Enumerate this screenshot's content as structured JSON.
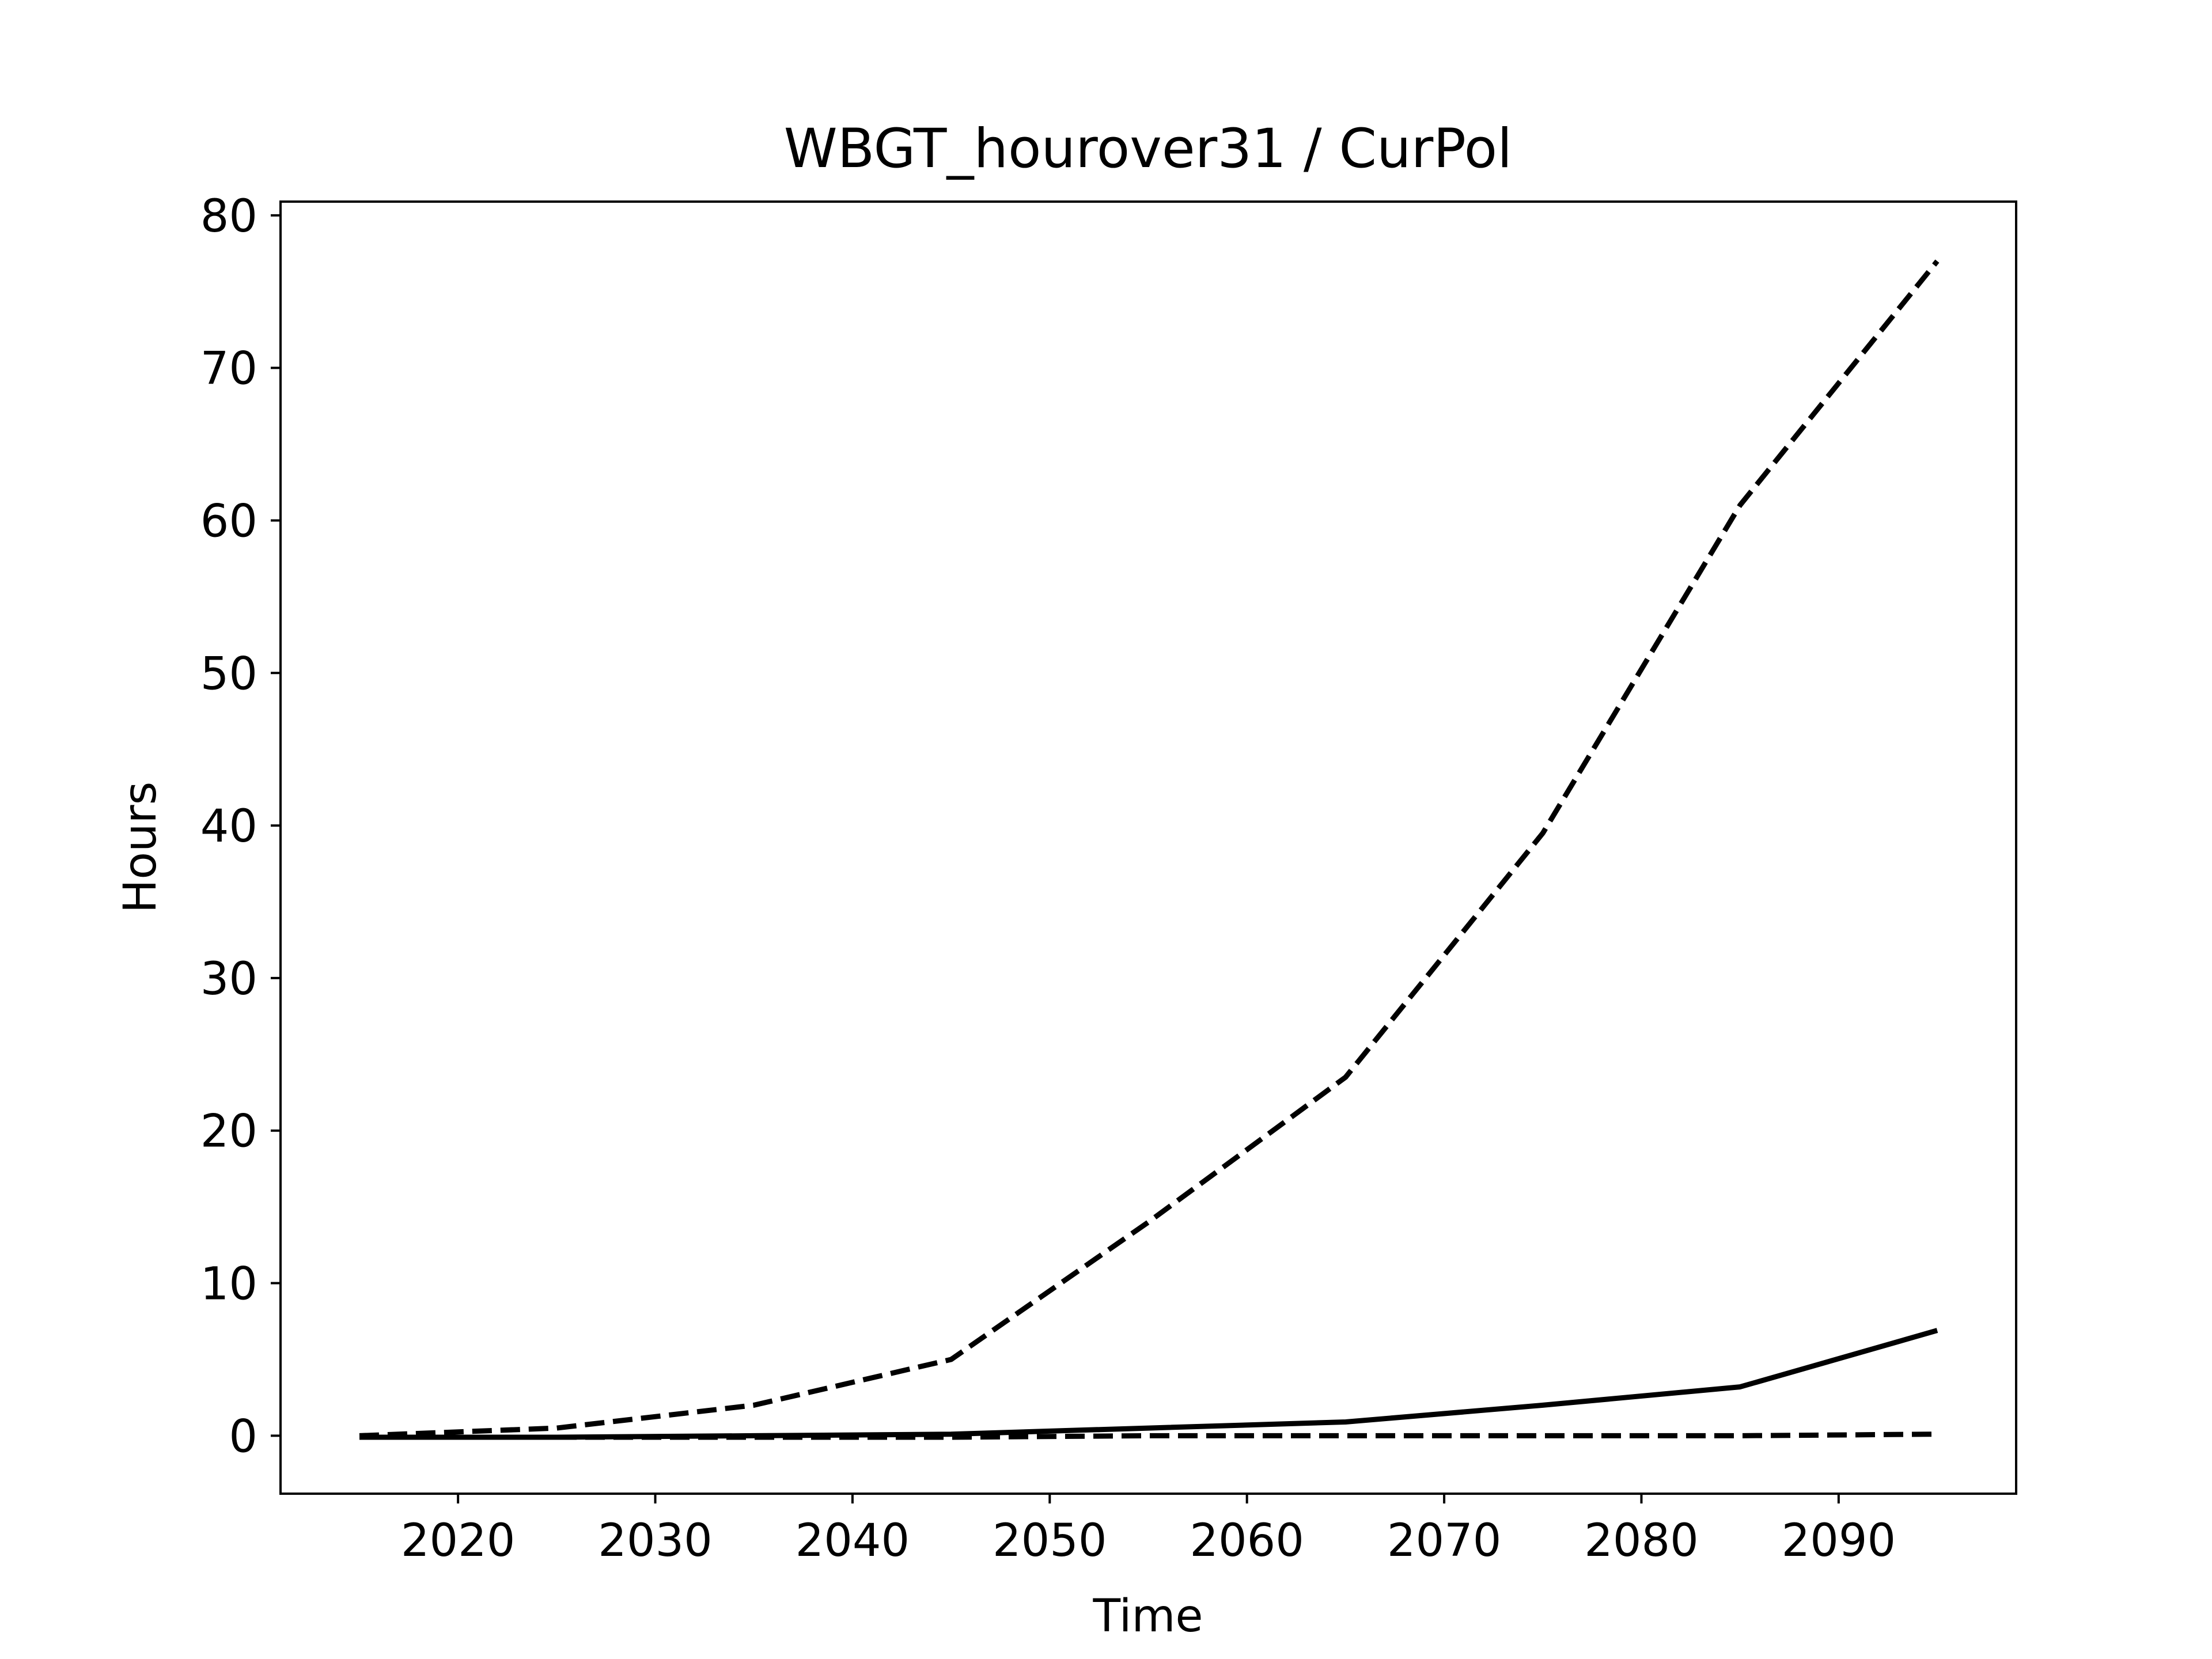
{
  "chart_data": {
    "type": "line",
    "title": "WBGT_hourover31 / CurPol",
    "xlabel": "Time",
    "ylabel": "Hours",
    "xlim": [
      2011,
      2099
    ],
    "ylim": [
      -3.8,
      80.9
    ],
    "xticks": [
      2020,
      2030,
      2040,
      2050,
      2060,
      2070,
      2080,
      2090
    ],
    "yticks": [
      0,
      10,
      20,
      30,
      40,
      50,
      60,
      70,
      80
    ],
    "grid": false,
    "legend": "none",
    "line_color": "#000000",
    "x": [
      2015,
      2025,
      2035,
      2045,
      2055,
      2065,
      2075,
      2085,
      2095
    ],
    "series": [
      {
        "style": "dashed",
        "values": [
          0.0,
          0.5,
          2.0,
          5.0,
          14.0,
          23.5,
          39.5,
          61.0,
          77.0
        ]
      },
      {
        "style": "solid",
        "values": [
          -0.1,
          -0.1,
          0.0,
          0.1,
          0.5,
          0.9,
          2.0,
          3.2,
          6.9
        ]
      },
      {
        "style": "dashed",
        "values": [
          -0.1,
          -0.1,
          -0.1,
          -0.1,
          0.0,
          0.0,
          0.0,
          0.0,
          0.1
        ]
      }
    ]
  }
}
